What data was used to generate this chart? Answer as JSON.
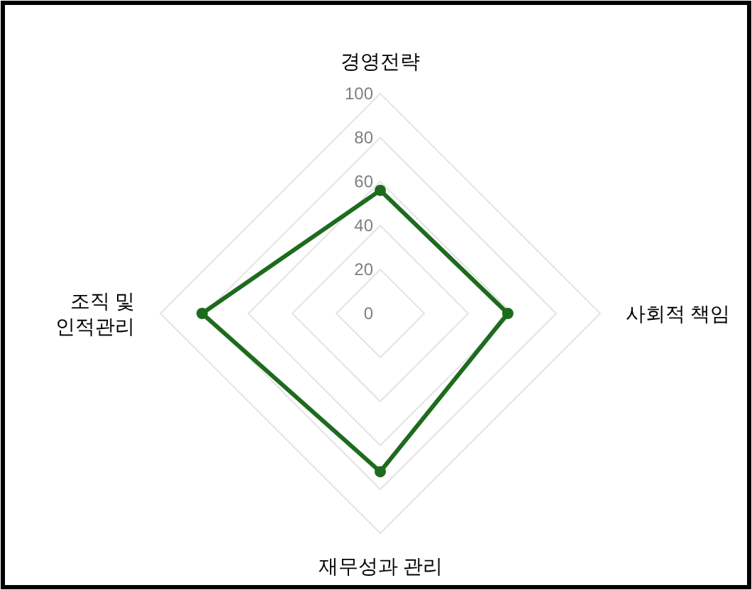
{
  "chart_data": {
    "type": "radar",
    "categories": [
      "경영전략",
      "사회적 책임",
      "재무성과 관리",
      "조직 및 인적관리"
    ],
    "series": [
      {
        "color": "#1e6b1e",
        "values": [
          56,
          58,
          72,
          81
        ]
      }
    ],
    "ylim": [
      0,
      100
    ],
    "yticks": [
      0,
      20,
      40,
      60,
      80,
      100
    ],
    "grid": true,
    "marker": "circle"
  }
}
